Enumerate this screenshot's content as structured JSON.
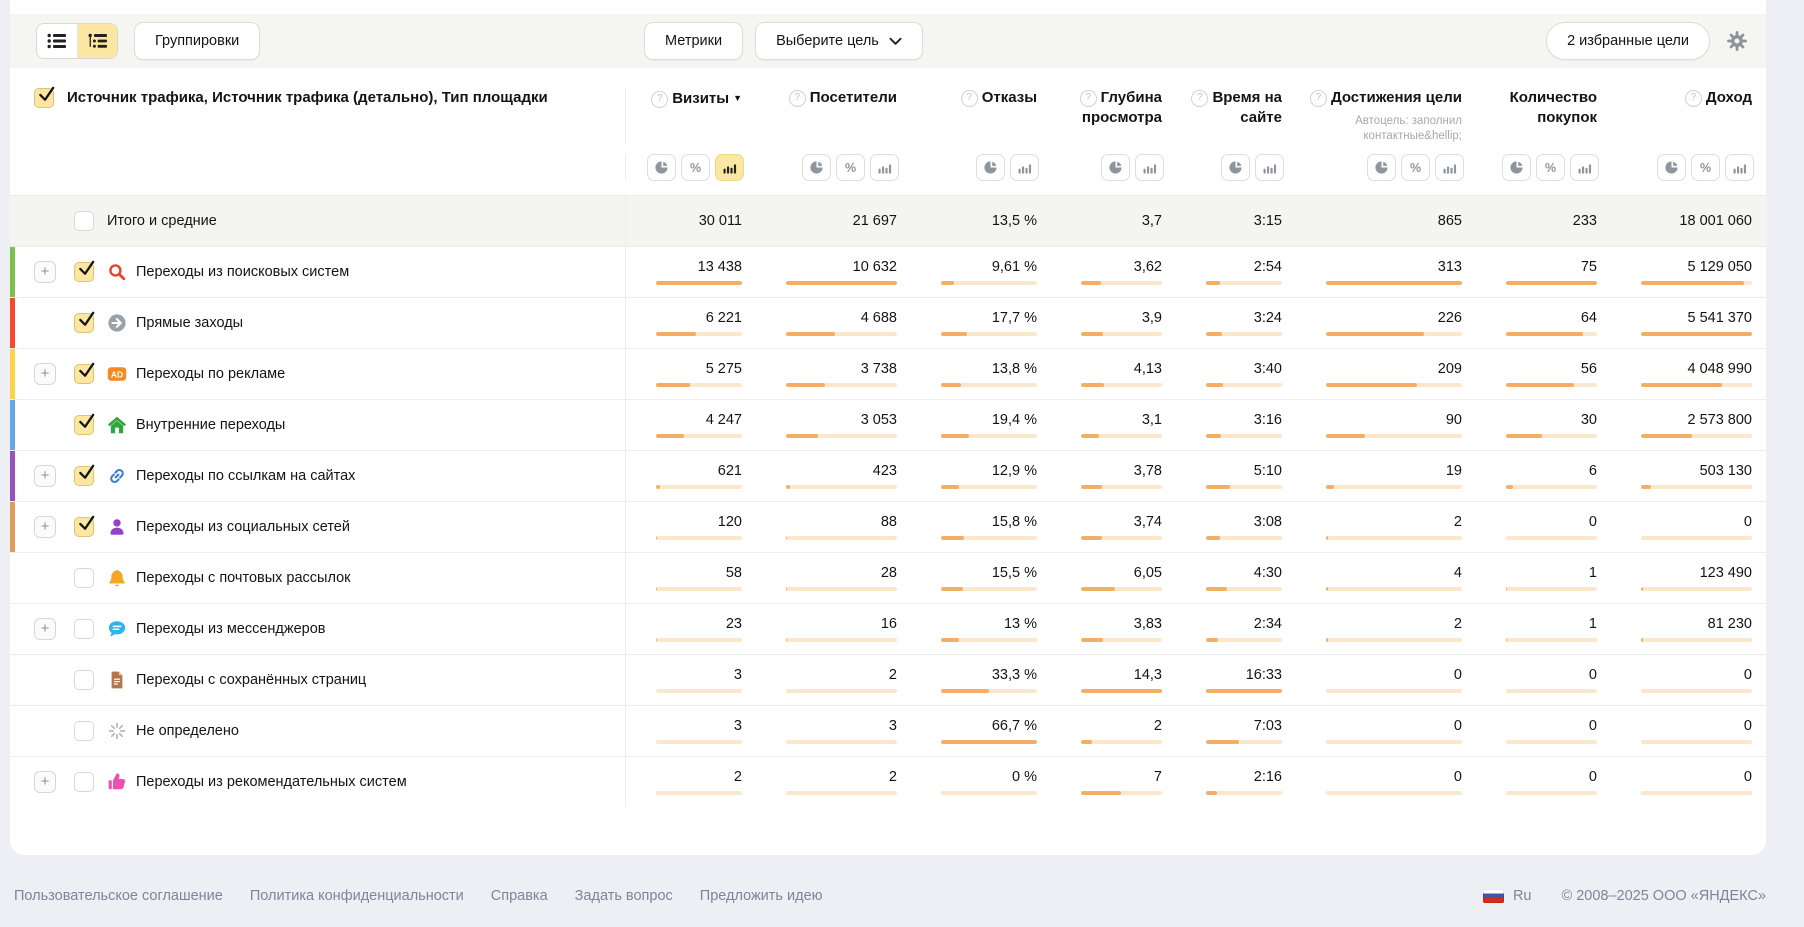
{
  "toolbar": {
    "groupings_label": "Группировки",
    "metrics_label": "Метрики",
    "goal_select_label": "Выберите цель",
    "favorite_goals_label": "2 избранные цели"
  },
  "table": {
    "dimension_header": "Источник трафика, Источник трафика (детально), Тип площадки",
    "columns": [
      {
        "key": "visits",
        "label": "Визиты",
        "help": true,
        "sorted": true,
        "toggles": [
          "pie",
          "percent",
          "bars"
        ],
        "active": "bars"
      },
      {
        "key": "visitors",
        "label": "Посетители",
        "help": true,
        "toggles": [
          "pie",
          "percent",
          "bars"
        ]
      },
      {
        "key": "bounce",
        "label": "Отказы",
        "help": true,
        "toggles": [
          "pie",
          "bars"
        ]
      },
      {
        "key": "depth",
        "label": "Глубина просмотра",
        "help": true,
        "toggles": [
          "pie",
          "bars"
        ]
      },
      {
        "key": "time",
        "label": "Время на сайте",
        "help": true,
        "toggles": [
          "pie",
          "bars"
        ]
      },
      {
        "key": "goals",
        "label": "Достижения цели",
        "help": true,
        "subtitle": "Автоцель: заполнил контактные&hellip;",
        "toggles": [
          "pie",
          "percent",
          "bars"
        ]
      },
      {
        "key": "purchases",
        "label": "Количество покупок",
        "help": false,
        "toggles": [
          "pie",
          "percent",
          "bars"
        ]
      },
      {
        "key": "revenue",
        "label": "Доход",
        "help": true,
        "toggles": [
          "pie",
          "percent",
          "bars"
        ]
      }
    ],
    "totals": {
      "label": "Итого и средние",
      "values": [
        "30 011",
        "21 697",
        "13,5 %",
        "3,7",
        "3:15",
        "865",
        "233",
        "18 001 060"
      ]
    },
    "rows": [
      {
        "label": "Переходы из поисковых систем",
        "icon": "search",
        "color": "#7cc04e",
        "expandable": true,
        "checked": true,
        "cells": [
          [
            "13 438",
            100
          ],
          [
            "10 632",
            100
          ],
          [
            "9,61 %",
            14
          ],
          [
            "3,62",
            25
          ],
          [
            "2:54",
            18
          ],
          [
            "313",
            100
          ],
          [
            "75",
            100
          ],
          [
            "5 129 050",
            93
          ]
        ]
      },
      {
        "label": "Прямые заходы",
        "icon": "direct",
        "color": "#f4482f",
        "expandable": false,
        "checked": true,
        "cells": [
          [
            "6 221",
            46
          ],
          [
            "4 688",
            44
          ],
          [
            "17,7 %",
            27
          ],
          [
            "3,9",
            27
          ],
          [
            "3:24",
            21
          ],
          [
            "226",
            72
          ],
          [
            "64",
            85
          ],
          [
            "5 541 370",
            100
          ]
        ]
      },
      {
        "label": "Переходы по рекламе",
        "icon": "ad",
        "color": "#fdd348",
        "expandable": true,
        "checked": true,
        "cells": [
          [
            "5 275",
            39
          ],
          [
            "3 738",
            35
          ],
          [
            "13,8 %",
            21
          ],
          [
            "4,13",
            29
          ],
          [
            "3:40",
            22
          ],
          [
            "209",
            67
          ],
          [
            "56",
            75
          ],
          [
            "4 048 990",
            73
          ]
        ]
      },
      {
        "label": "Внутренние переходы",
        "icon": "home",
        "color": "#66a7e8",
        "expandable": false,
        "checked": true,
        "cells": [
          [
            "4 247",
            32
          ],
          [
            "3 053",
            29
          ],
          [
            "19,4 %",
            29
          ],
          [
            "3,1",
            22
          ],
          [
            "3:16",
            20
          ],
          [
            "90",
            29
          ],
          [
            "30",
            40
          ],
          [
            "2 573 800",
            46
          ]
        ]
      },
      {
        "label": "Переходы по ссылкам на сайтах",
        "icon": "link",
        "color": "#9850be",
        "expandable": true,
        "checked": true,
        "cells": [
          [
            "621",
            5
          ],
          [
            "423",
            4
          ],
          [
            "12,9 %",
            19
          ],
          [
            "3,78",
            26
          ],
          [
            "5:10",
            31
          ],
          [
            "19",
            6
          ],
          [
            "6",
            8
          ],
          [
            "503 130",
            9
          ]
        ]
      },
      {
        "label": "Переходы из социальных сетей",
        "icon": "social",
        "color": "#dd9e55",
        "expandable": true,
        "checked": true,
        "cells": [
          [
            "120",
            1
          ],
          [
            "88",
            1
          ],
          [
            "15,8 %",
            24
          ],
          [
            "3,74",
            26
          ],
          [
            "3:08",
            19
          ],
          [
            "2",
            1
          ],
          [
            "0",
            0
          ],
          [
            "0",
            0
          ]
        ]
      },
      {
        "label": "Переходы с почтовых рассылок",
        "icon": "mail",
        "color": null,
        "expandable": false,
        "checked": false,
        "cells": [
          [
            "58",
            0.5
          ],
          [
            "28",
            0.3
          ],
          [
            "15,5 %",
            23
          ],
          [
            "6,05",
            42
          ],
          [
            "4:30",
            27
          ],
          [
            "4",
            1.3
          ],
          [
            "1",
            1.3
          ],
          [
            "123 490",
            2.2
          ]
        ]
      },
      {
        "label": "Переходы из мессенджеров",
        "icon": "messenger",
        "color": null,
        "expandable": true,
        "checked": false,
        "cells": [
          [
            "23",
            0.2
          ],
          [
            "16",
            0.2
          ],
          [
            "13 %",
            19
          ],
          [
            "3,83",
            27
          ],
          [
            "2:34",
            16
          ],
          [
            "2",
            0.6
          ],
          [
            "1",
            1.3
          ],
          [
            "81 230",
            1.5
          ]
        ]
      },
      {
        "label": "Переходы с сохранённых страниц",
        "icon": "saved",
        "color": null,
        "expandable": false,
        "checked": false,
        "cells": [
          [
            "3",
            0
          ],
          [
            "2",
            0
          ],
          [
            "33,3 %",
            50
          ],
          [
            "14,3",
            100
          ],
          [
            "16:33",
            100
          ],
          [
            "0",
            0
          ],
          [
            "0",
            0
          ],
          [
            "0",
            0
          ]
        ]
      },
      {
        "label": "Не определено",
        "icon": "notdefined",
        "color": null,
        "expandable": false,
        "checked": false,
        "cells": [
          [
            "3",
            0
          ],
          [
            "3",
            0
          ],
          [
            "66,7 %",
            100
          ],
          [
            "2",
            14
          ],
          [
            "7:03",
            43
          ],
          [
            "0",
            0
          ],
          [
            "0",
            0
          ],
          [
            "0",
            0
          ]
        ]
      },
      {
        "label": "Переходы из рекомендательных систем",
        "icon": "recommend",
        "color": null,
        "expandable": true,
        "checked": false,
        "cells": [
          [
            "2",
            0
          ],
          [
            "2",
            0
          ],
          [
            "0 %",
            0
          ],
          [
            "7",
            49
          ],
          [
            "2:16",
            14
          ],
          [
            "0",
            0
          ],
          [
            "0",
            0
          ],
          [
            "0",
            0
          ]
        ]
      }
    ]
  },
  "footer": {
    "links": [
      "Пользовательское соглашение",
      "Политика конфиденциальности",
      "Справка",
      "Задать вопрос",
      "Предложить идею"
    ],
    "language": "Ru",
    "copyright": "© 2008–2025 ООО «ЯНДЕКС»"
  }
}
